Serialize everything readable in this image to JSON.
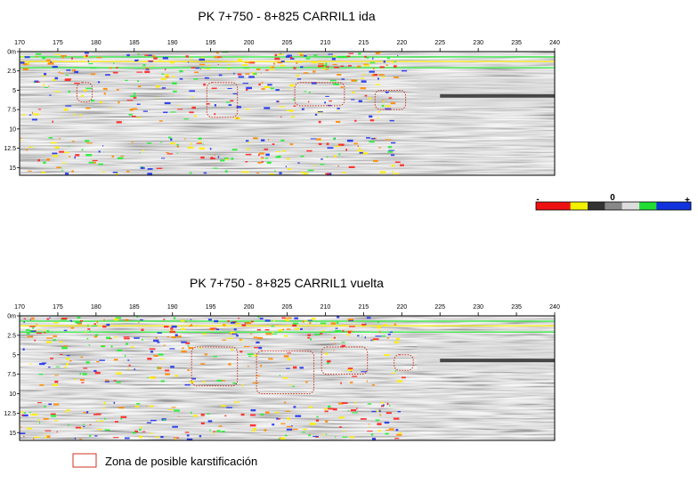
{
  "chart_data": [
    {
      "type": "heatmap",
      "title": "PK 7+750 - 8+825 CARRIL1 ida",
      "x_ticks": [
        "170",
        "175",
        "180",
        "185",
        "190",
        "195",
        "200",
        "205",
        "210",
        "215",
        "220",
        "225",
        "230",
        "235",
        "240"
      ],
      "y_ticks": [
        "0m",
        "2.5",
        "5",
        "7.5",
        "10",
        "12.5",
        "15"
      ],
      "xlim": [
        170,
        240
      ],
      "ylim": [
        0,
        16
      ],
      "karst_zones": [
        {
          "x0": 177.5,
          "x1": 179.5,
          "y0": 4.0,
          "y1": 6.5
        },
        {
          "x0": 194.5,
          "x1": 198.5,
          "y0": 4.0,
          "y1": 8.5
        },
        {
          "x0": 206.0,
          "x1": 212.5,
          "y0": 4.0,
          "y1": 7.0
        },
        {
          "x0": 216.5,
          "x1": 220.5,
          "y0": 5.0,
          "y1": 7.5
        }
      ]
    },
    {
      "type": "heatmap",
      "title": "PK 7+750 - 8+825 CARRIL1 vuelta",
      "x_ticks": [
        "170",
        "175",
        "180",
        "185",
        "190",
        "195",
        "200",
        "205",
        "210",
        "215",
        "220",
        "225",
        "230",
        "235",
        "240"
      ],
      "y_ticks": [
        "0m",
        "2.5",
        "5",
        "7.5",
        "10",
        "12.5",
        "15"
      ],
      "xlim": [
        170,
        240
      ],
      "ylim": [
        0,
        16
      ],
      "karst_zones": [
        {
          "x0": 192.5,
          "x1": 198.5,
          "y0": 4.0,
          "y1": 9.0
        },
        {
          "x0": 201.0,
          "x1": 208.5,
          "y0": 4.5,
          "y1": 10.0
        },
        {
          "x0": 209.5,
          "x1": 215.5,
          "y0": 4.0,
          "y1": 7.5
        },
        {
          "x0": 219.0,
          "x1": 221.5,
          "y0": 5.0,
          "y1": 7.0
        }
      ]
    }
  ],
  "color_scale": {
    "minus_label": "-",
    "zero_label": "0",
    "plus_label": "+",
    "colors": [
      "#ee1111",
      "#ee1111",
      "#f2f200",
      "#333333",
      "#888888",
      "#dddddd",
      "#22dd33",
      "#1133dd",
      "#1133dd"
    ]
  },
  "legend": {
    "label": "Zona de posible karstificación",
    "color": "#cc3322"
  }
}
